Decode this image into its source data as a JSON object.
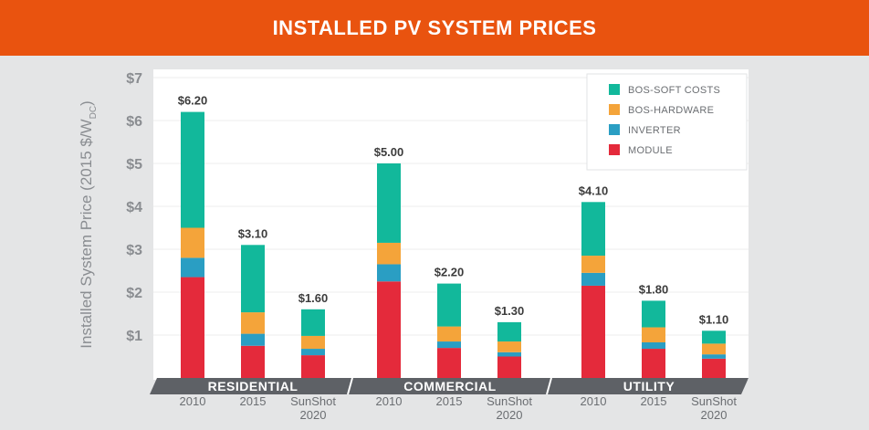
{
  "header": {
    "title": "INSTALLED PV SYSTEM PRICES"
  },
  "colors": {
    "banner": "#e9530f",
    "soft_costs": "#12b89b",
    "hardware": "#f4a43a",
    "inverter": "#2a9ec3",
    "module": "#e42a3b",
    "band": "#5e6166",
    "axis_text": "#8a8d91",
    "value_text": "#3c3c3c"
  },
  "chart_data": {
    "type": "bar",
    "stacked": true,
    "ylabel": "Installed System Price (2015 $/W",
    "ylabel_subscript": "DC",
    "ylabel_close": ")",
    "ylim": [
      0,
      7
    ],
    "yticks": [
      "$1",
      "$2",
      "$3",
      "$4",
      "$5",
      "$6",
      "$7"
    ],
    "legend": {
      "placement": "top-right",
      "entries": [
        {
          "label": "BOS-SOFT COSTS",
          "color": "#12b89b"
        },
        {
          "label": "BOS-HARDWARE",
          "color": "#f4a43a"
        },
        {
          "label": "INVERTER",
          "color": "#2a9ec3"
        },
        {
          "label": "MODULE",
          "color": "#e42a3b"
        }
      ]
    },
    "groups": [
      {
        "name": "RESIDENTIAL",
        "bars": [
          {
            "label": [
              "2010"
            ],
            "total_label": "$6.20",
            "stack": {
              "module": 2.35,
              "inverter": 0.45,
              "hardware": 0.7,
              "soft_costs": 2.7
            }
          },
          {
            "label": [
              "2015"
            ],
            "total_label": "$3.10",
            "stack": {
              "module": 0.75,
              "inverter": 0.28,
              "hardware": 0.5,
              "soft_costs": 1.57
            }
          },
          {
            "label": [
              "SunShot",
              "2020"
            ],
            "total_label": "$1.60",
            "stack": {
              "module": 0.53,
              "inverter": 0.15,
              "hardware": 0.3,
              "soft_costs": 0.62
            }
          }
        ]
      },
      {
        "name": "COMMERCIAL",
        "bars": [
          {
            "label": [
              "2010"
            ],
            "total_label": "$5.00",
            "stack": {
              "module": 2.25,
              "inverter": 0.4,
              "hardware": 0.5,
              "soft_costs": 1.85
            }
          },
          {
            "label": [
              "2015"
            ],
            "total_label": "$2.20",
            "stack": {
              "module": 0.7,
              "inverter": 0.15,
              "hardware": 0.35,
              "soft_costs": 1.0
            }
          },
          {
            "label": [
              "SunShot",
              "2020"
            ],
            "total_label": "$1.30",
            "stack": {
              "module": 0.5,
              "inverter": 0.1,
              "hardware": 0.25,
              "soft_costs": 0.45
            }
          }
        ]
      },
      {
        "name": "UTILITY",
        "bars": [
          {
            "label": [
              "2010"
            ],
            "total_label": "$4.10",
            "stack": {
              "module": 2.15,
              "inverter": 0.3,
              "hardware": 0.4,
              "soft_costs": 1.25
            }
          },
          {
            "label": [
              "2015"
            ],
            "total_label": "$1.80",
            "stack": {
              "module": 0.68,
              "inverter": 0.15,
              "hardware": 0.35,
              "soft_costs": 0.62
            }
          },
          {
            "label": [
              "SunShot",
              "2020"
            ],
            "total_label": "$1.10",
            "stack": {
              "module": 0.45,
              "inverter": 0.1,
              "hardware": 0.25,
              "soft_costs": 0.3
            }
          }
        ]
      }
    ]
  }
}
